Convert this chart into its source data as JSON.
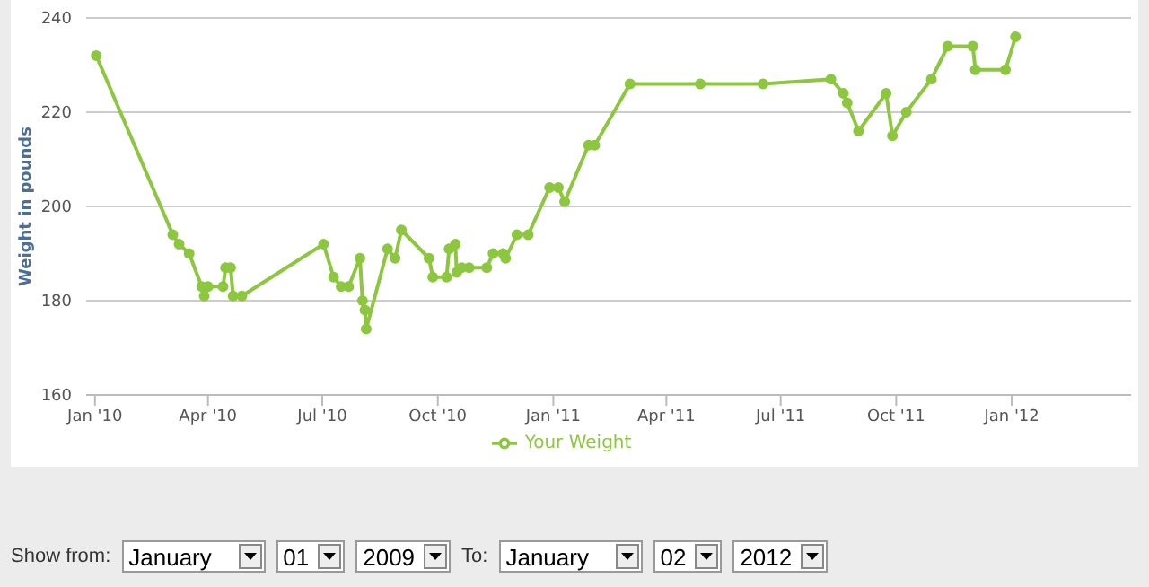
{
  "chart_data": {
    "type": "line",
    "ylabel": "Weight in pounds",
    "x": [
      "2010-01-02",
      "2010-03-04",
      "2010-03-09",
      "2010-03-17",
      "2010-03-27",
      "2010-03-29",
      "2010-04-01",
      "2010-04-13",
      "2010-04-15",
      "2010-04-19",
      "2010-04-21",
      "2010-04-28",
      "2010-07-02",
      "2010-07-10",
      "2010-07-16",
      "2010-07-22",
      "2010-07-31",
      "2010-08-02",
      "2010-08-04",
      "2010-08-05",
      "2010-08-22",
      "2010-08-28",
      "2010-09-02",
      "2010-09-24",
      "2010-09-27",
      "2010-10-08",
      "2010-10-10",
      "2010-10-15",
      "2010-10-16",
      "2010-10-20",
      "2010-10-26",
      "2010-11-09",
      "2010-11-14",
      "2010-11-22",
      "2010-11-24",
      "2010-12-03",
      "2010-12-12",
      "2010-12-29",
      "2011-01-05",
      "2011-01-10",
      "2011-01-29",
      "2011-02-03",
      "2011-03-03",
      "2011-04-28",
      "2011-06-17",
      "2011-08-10",
      "2011-08-20",
      "2011-08-23",
      "2011-09-01",
      "2011-09-23",
      "2011-09-28",
      "2011-10-09",
      "2011-10-29",
      "2011-11-11",
      "2011-12-01",
      "2011-12-03",
      "2011-12-27",
      "2012-01-04"
    ],
    "series": [
      {
        "name": "Your Weight",
        "color": "#8dc63f",
        "values": [
          232,
          194,
          192,
          190,
          183,
          181,
          183,
          183,
          187,
          187,
          181,
          181,
          192,
          185,
          183,
          183,
          189,
          180,
          178,
          174,
          191,
          189,
          195,
          189,
          185,
          185,
          191,
          192,
          186,
          187,
          187,
          187,
          190,
          190,
          189,
          194,
          194,
          204,
          204,
          201,
          213,
          213,
          226,
          226,
          226,
          227,
          224,
          222,
          216,
          224,
          215,
          220,
          227,
          234,
          234,
          229,
          229,
          236
        ]
      }
    ],
    "xlim": [
      "2009-12-25",
      "2012-04-05"
    ],
    "xticks": [
      {
        "value": "2010-01-01",
        "label": "Jan '10"
      },
      {
        "value": "2010-04-01",
        "label": "Apr '10"
      },
      {
        "value": "2010-07-01",
        "label": "Jul '10"
      },
      {
        "value": "2010-10-01",
        "label": "Oct '10"
      },
      {
        "value": "2011-01-01",
        "label": "Jan '11"
      },
      {
        "value": "2011-04-01",
        "label": "Apr '11"
      },
      {
        "value": "2011-07-01",
        "label": "Jul '11"
      },
      {
        "value": "2011-10-01",
        "label": "Oct '11"
      },
      {
        "value": "2012-01-01",
        "label": "Jan '12"
      }
    ],
    "ylim": [
      160,
      240
    ],
    "yticks": [
      160,
      180,
      200,
      220,
      240
    ],
    "grid": "y",
    "legend": "bottom",
    "marker": "circle",
    "line_style": "solid",
    "annotations": [
      "Show from:",
      "January",
      "01",
      "2009",
      "To:",
      "January",
      "02",
      "2012"
    ]
  }
}
